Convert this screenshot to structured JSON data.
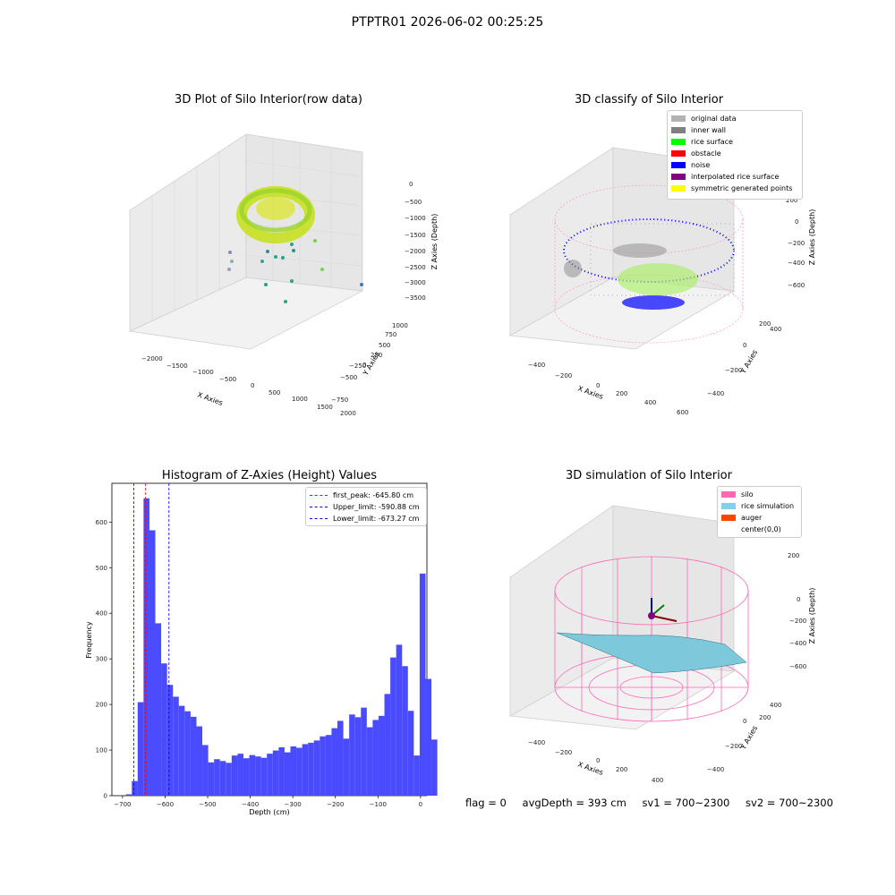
{
  "suptitle": "PTPTR01 2026-06-02 00:25:25",
  "panels": {
    "raw3d": {
      "title": "3D Plot of Silo Interior(row data)",
      "xlabel": "X Axies",
      "ylabel": "Y Axies",
      "zlabel": "Z Axies (Depth)",
      "x_ticks": [
        "−2000",
        "−1500",
        "−1000",
        "−500",
        "0",
        "500",
        "1000",
        "1500",
        "2000"
      ],
      "y_ticks": [
        "−750",
        "−500",
        "−250",
        "0",
        "250",
        "500",
        "750",
        "1000"
      ],
      "z_ticks": [
        "0",
        "−500",
        "−1000",
        "−1500",
        "−2000",
        "−2500",
        "−3000",
        "−3500"
      ]
    },
    "classify3d": {
      "title": "3D classify of Silo Interior",
      "xlabel": "X Axies",
      "ylabel": "Y Axies",
      "zlabel": "Z Axies (Depth)",
      "x_ticks": [
        "−400",
        "−200",
        "0",
        "200",
        "400",
        "600"
      ],
      "y_ticks": [
        "−400",
        "−200",
        "0",
        "200",
        "400"
      ],
      "z_ticks": [
        "200",
        "0",
        "−200",
        "−400",
        "−600"
      ],
      "legend": [
        {
          "label": "original data",
          "color": "#b3b3b3"
        },
        {
          "label": "inner wall",
          "color": "#808080"
        },
        {
          "label": "rice surface",
          "color": "#00ff00"
        },
        {
          "label": "obstacle",
          "color": "#ff0000"
        },
        {
          "label": "noise",
          "color": "#0000ff"
        },
        {
          "label": "interpolated rice surface",
          "color": "#800080"
        },
        {
          "label": "symmetric generated points",
          "color": "#ffff00"
        }
      ]
    },
    "simulation3d": {
      "title": "3D simulation of Silo Interior",
      "xlabel": "X Axies",
      "ylabel": "Y Axies",
      "zlabel": "Z Axies (Depth)",
      "x_ticks": [
        "−400",
        "−200",
        "0",
        "200",
        "400"
      ],
      "y_ticks": [
        "−400",
        "−200",
        "0",
        "200",
        "400"
      ],
      "z_ticks": [
        "200",
        "0",
        "−200",
        "−400",
        "−600"
      ],
      "legend": [
        {
          "label": "silo",
          "color": "#ff69b4"
        },
        {
          "label": "rice simulation",
          "color": "#87ceeb"
        },
        {
          "label": "auger",
          "color": "#ff4500"
        },
        {
          "label": "center(0,0)",
          "color": "#ffffff"
        }
      ]
    }
  },
  "status": {
    "flag": "flag = 0",
    "avg": "avgDepth = 393 cm",
    "sv1": "sv1 = 700~2300",
    "sv2": "sv2 = 700~2300"
  },
  "chart_data": {
    "type": "bar",
    "title": "Histogram of Z-Axies (Height) Values",
    "xlabel": "Depth (cm)",
    "ylabel": "Frequency",
    "xlim": [
      -725,
      15
    ],
    "ylim": [
      0,
      685
    ],
    "x_ticks": [
      -700,
      -600,
      -500,
      -400,
      -300,
      -200,
      -100,
      0
    ],
    "x_tick_labels": [
      "−700",
      "−600",
      "−500",
      "−400",
      "−300",
      "−200",
      "−100",
      "0"
    ],
    "y_ticks": [
      0,
      100,
      200,
      300,
      400,
      500,
      600
    ],
    "bin_width": 13.8,
    "bin_start": -692,
    "values": [
      3,
      32,
      205,
      652,
      582,
      378,
      290,
      243,
      217,
      197,
      185,
      173,
      152,
      111,
      73,
      80,
      76,
      72,
      88,
      92,
      82,
      89,
      86,
      83,
      92,
      99,
      106,
      95,
      108,
      105,
      113,
      116,
      121,
      130,
      133,
      148,
      164,
      125,
      178,
      172,
      193,
      150,
      166,
      175,
      223,
      303,
      331,
      284,
      186,
      88,
      487,
      256,
      123
    ],
    "bar_color": "#4a4aff",
    "vlines": [
      {
        "label": "first_peak: -645.80 cm",
        "x": -645.8,
        "color": "#ff0000"
      },
      {
        "label": "Upper_limit: -590.88 cm",
        "x": -590.88,
        "color": "#0000ff"
      },
      {
        "label": "Lower_limit: -673.27 cm",
        "x": -673.27,
        "color": "#0000ff"
      }
    ],
    "legend_position": "top-right"
  }
}
